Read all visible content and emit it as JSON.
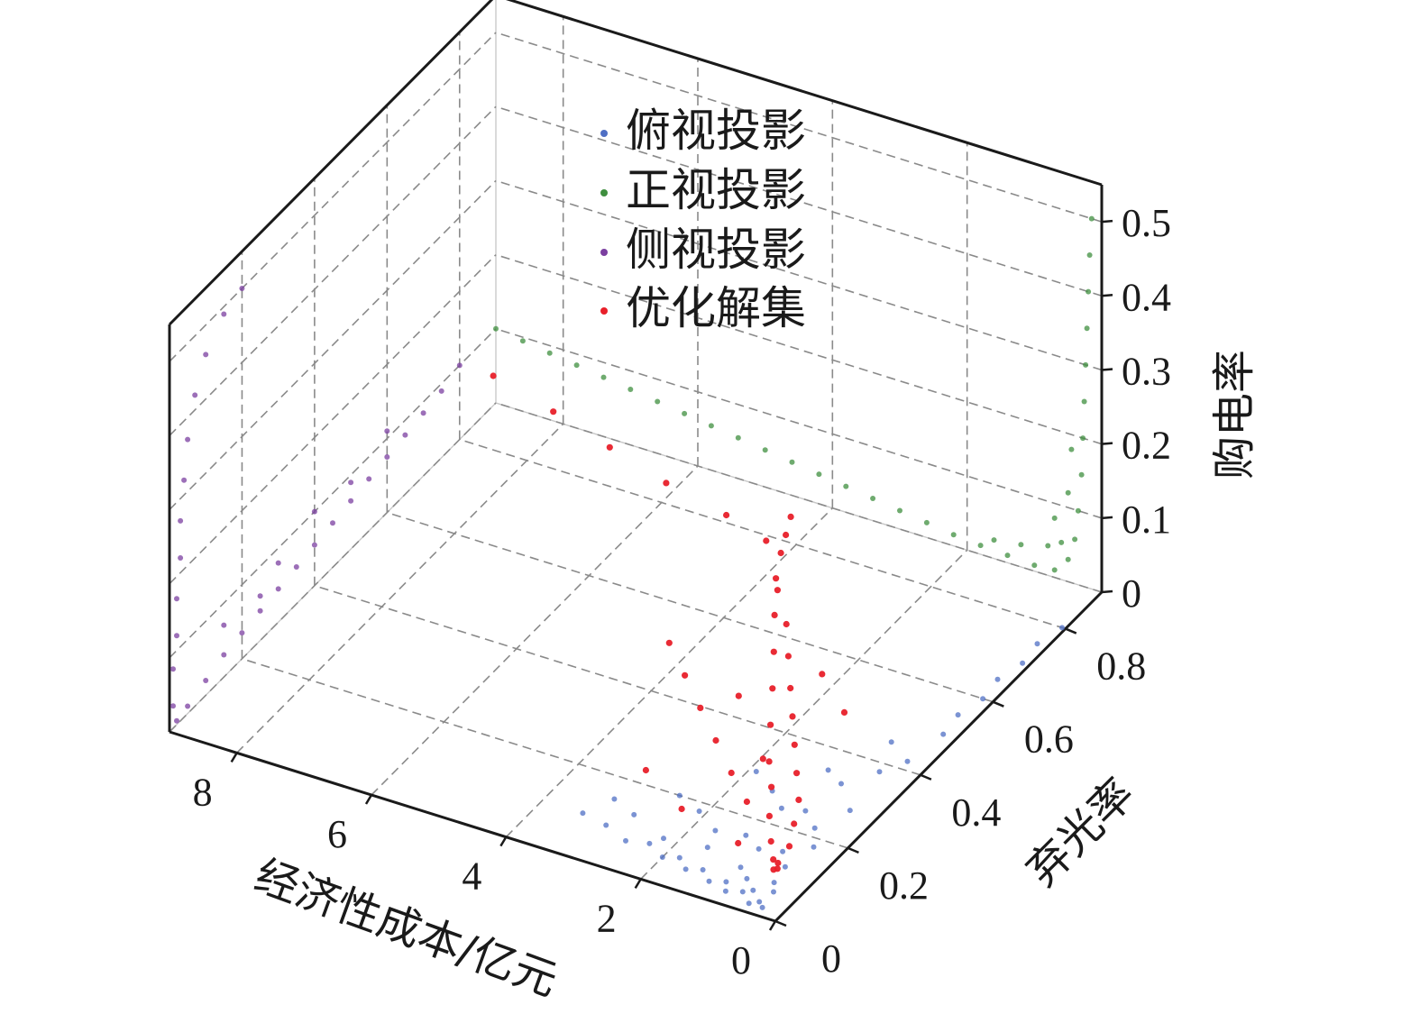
{
  "chart_data": {
    "type": "scatter",
    "projection": "3d",
    "axes": {
      "x": {
        "label": "经济性成本/亿元",
        "ticks": [
          "0",
          "2",
          "4",
          "6",
          "8"
        ],
        "range": [
          0,
          9
        ]
      },
      "y": {
        "label": "弃光率",
        "ticks": [
          "0",
          "0.2",
          "0.4",
          "0.6",
          "0.8"
        ],
        "range": [
          0,
          0.9
        ]
      },
      "z": {
        "label": "购电率",
        "ticks": [
          "0",
          "0.1",
          "0.2",
          "0.3",
          "0.4",
          "0.5"
        ],
        "range": [
          0,
          0.55
        ]
      }
    },
    "grid": true,
    "legend": {
      "placement": "top-center",
      "entries": [
        {
          "label": "俯视投影",
          "color": "#4f6fc4"
        },
        {
          "label": "正视投影",
          "color": "#3f8f3f"
        },
        {
          "label": "侧视投影",
          "color": "#7b3fa0"
        },
        {
          "label": "优化解集",
          "color": "#e8202a"
        }
      ]
    },
    "series": [
      {
        "name": "俯视投影",
        "color": "#4f6fc4",
        "points_xyz": [
          [
            0.3,
            0.02,
            0
          ],
          [
            0.4,
            0.03,
            0
          ],
          [
            0.5,
            0.02,
            0
          ],
          [
            0.6,
            0.05,
            0
          ],
          [
            0.7,
            0.04,
            0
          ],
          [
            0.8,
            0.07,
            0
          ],
          [
            0.35,
            0.06,
            0
          ],
          [
            0.45,
            0.08,
            0
          ],
          [
            0.9,
            0.03,
            0
          ],
          [
            1.0,
            0.05,
            0
          ],
          [
            1.2,
            0.04,
            0
          ],
          [
            1.4,
            0.06,
            0
          ],
          [
            1.6,
            0.05,
            0
          ],
          [
            1.8,
            0.07,
            0
          ],
          [
            2.0,
            0.06,
            0
          ],
          [
            2.3,
            0.08,
            0
          ],
          [
            2.6,
            0.07,
            0
          ],
          [
            3.0,
            0.09,
            0
          ],
          [
            3.4,
            0.1,
            0
          ],
          [
            0.5,
            0.12,
            0
          ],
          [
            0.7,
            0.15,
            0
          ],
          [
            1.0,
            0.14,
            0
          ],
          [
            1.3,
            0.16,
            0
          ],
          [
            1.7,
            0.15,
            0
          ],
          [
            2.1,
            0.18,
            0
          ],
          [
            2.5,
            0.2,
            0
          ],
          [
            0.6,
            0.22,
            0
          ],
          [
            0.9,
            0.25,
            0
          ],
          [
            1.2,
            0.24,
            0
          ],
          [
            1.5,
            0.27,
            0
          ],
          [
            1.9,
            0.3,
            0
          ],
          [
            0.4,
            0.28,
            0
          ],
          [
            0.8,
            0.33,
            0
          ],
          [
            1.1,
            0.35,
            0
          ],
          [
            0.5,
            0.38,
            0
          ],
          [
            0.3,
            0.42,
            0
          ],
          [
            0.7,
            0.45,
            0
          ],
          [
            0.2,
            0.5,
            0
          ],
          [
            0.25,
            0.55,
            0
          ],
          [
            0.15,
            0.6,
            0
          ],
          [
            0.2,
            0.65,
            0
          ],
          [
            0.1,
            0.7,
            0
          ],
          [
            0.15,
            0.75,
            0
          ],
          [
            0.05,
            0.8,
            0
          ],
          [
            0.4,
            0.18,
            0
          ],
          [
            1.6,
            0.11,
            0
          ],
          [
            2.8,
            0.13,
            0
          ],
          [
            3.2,
            0.15,
            0
          ],
          [
            1.0,
            0.09,
            0
          ],
          [
            2.2,
            0.1,
            0
          ]
        ]
      },
      {
        "name": "正视投影",
        "color": "#3f8f3f",
        "points_xyz": [
          [
            9.0,
            0.9,
            0.1
          ],
          [
            8.6,
            0.9,
            0.095
          ],
          [
            8.2,
            0.9,
            0.09
          ],
          [
            7.8,
            0.9,
            0.085
          ],
          [
            7.4,
            0.9,
            0.08
          ],
          [
            7.0,
            0.9,
            0.075
          ],
          [
            6.6,
            0.9,
            0.07
          ],
          [
            6.2,
            0.9,
            0.065
          ],
          [
            5.8,
            0.9,
            0.06
          ],
          [
            5.4,
            0.9,
            0.055
          ],
          [
            5.0,
            0.9,
            0.05
          ],
          [
            4.6,
            0.9,
            0.045
          ],
          [
            4.2,
            0.9,
            0.04
          ],
          [
            3.8,
            0.9,
            0.035
          ],
          [
            3.4,
            0.9,
            0.03
          ],
          [
            3.0,
            0.9,
            0.025
          ],
          [
            2.6,
            0.9,
            0.02
          ],
          [
            2.2,
            0.9,
            0.015
          ],
          [
            1.8,
            0.9,
            0.012
          ],
          [
            1.4,
            0.9,
            0.01
          ],
          [
            1.0,
            0.9,
            0.008
          ],
          [
            0.7,
            0.9,
            0.01
          ],
          [
            0.5,
            0.9,
            0.03
          ],
          [
            0.4,
            0.9,
            0.06
          ],
          [
            0.35,
            0.9,
            0.1
          ],
          [
            0.3,
            0.9,
            0.15
          ],
          [
            0.28,
            0.9,
            0.2
          ],
          [
            0.26,
            0.9,
            0.25
          ],
          [
            0.24,
            0.9,
            0.3
          ],
          [
            0.22,
            0.9,
            0.35
          ],
          [
            0.2,
            0.9,
            0.4
          ],
          [
            0.18,
            0.9,
            0.45
          ],
          [
            0.15,
            0.9,
            0.5
          ],
          [
            0.6,
            0.9,
            0.05
          ],
          [
            0.8,
            0.9,
            0.04
          ],
          [
            1.2,
            0.9,
            0.03
          ],
          [
            1.6,
            0.9,
            0.025
          ],
          [
            0.5,
            0.9,
            0.12
          ],
          [
            0.45,
            0.9,
            0.18
          ],
          [
            0.7,
            0.9,
            0.08
          ]
        ]
      },
      {
        "name": "侧视投影",
        "color": "#7b3fa0",
        "points_xyz": [
          [
            9.0,
            0.8,
            0.1
          ],
          [
            9.0,
            0.75,
            0.09
          ],
          [
            9.0,
            0.7,
            0.085
          ],
          [
            9.0,
            0.65,
            0.08
          ],
          [
            9.0,
            0.6,
            0.075
          ],
          [
            9.0,
            0.55,
            0.07
          ],
          [
            9.0,
            0.5,
            0.065
          ],
          [
            9.0,
            0.45,
            0.06
          ],
          [
            9.0,
            0.4,
            0.055
          ],
          [
            9.0,
            0.35,
            0.05
          ],
          [
            9.0,
            0.3,
            0.045
          ],
          [
            9.0,
            0.25,
            0.04
          ],
          [
            9.0,
            0.2,
            0.035
          ],
          [
            9.0,
            0.15,
            0.03
          ],
          [
            9.0,
            0.1,
            0.02
          ],
          [
            9.0,
            0.05,
            0.01
          ],
          [
            9.0,
            0.02,
            0.005
          ],
          [
            9.0,
            0.01,
            0.03
          ],
          [
            9.0,
            0.01,
            0.08
          ],
          [
            9.0,
            0.02,
            0.12
          ],
          [
            9.0,
            0.02,
            0.17
          ],
          [
            9.0,
            0.03,
            0.22
          ],
          [
            9.0,
            0.03,
            0.27
          ],
          [
            9.0,
            0.04,
            0.32
          ],
          [
            9.0,
            0.05,
            0.37
          ],
          [
            9.0,
            0.07,
            0.42
          ],
          [
            9.0,
            0.1,
            0.46
          ],
          [
            9.0,
            0.15,
            0.49
          ],
          [
            9.0,
            0.2,
            0.5
          ],
          [
            9.0,
            0.3,
            0.08
          ],
          [
            9.0,
            0.4,
            0.1
          ],
          [
            9.0,
            0.5,
            0.09
          ],
          [
            9.0,
            0.6,
            0.11
          ],
          [
            9.0,
            0.15,
            0.07
          ],
          [
            9.0,
            0.25,
            0.06
          ]
        ]
      },
      {
        "name": "优化解集",
        "color": "#e8202a",
        "points_xyz": [
          [
            8.5,
            0.8,
            0.1
          ],
          [
            7.5,
            0.78,
            0.09
          ],
          [
            6.5,
            0.75,
            0.085
          ],
          [
            5.5,
            0.72,
            0.08
          ],
          [
            4.5,
            0.7,
            0.075
          ],
          [
            3.8,
            0.68,
            0.07
          ],
          [
            3.2,
            0.6,
            0.06
          ],
          [
            2.8,
            0.55,
            0.05
          ],
          [
            2.5,
            0.5,
            0.04
          ],
          [
            2.2,
            0.45,
            0.03
          ],
          [
            1.9,
            0.4,
            0.025
          ],
          [
            1.6,
            0.35,
            0.02
          ],
          [
            1.3,
            0.3,
            0.015
          ],
          [
            1.0,
            0.25,
            0.012
          ],
          [
            0.8,
            0.2,
            0.01
          ],
          [
            0.6,
            0.15,
            0.01
          ],
          [
            0.5,
            0.1,
            0.015
          ],
          [
            0.4,
            0.08,
            0.02
          ],
          [
            0.35,
            0.06,
            0.03
          ],
          [
            0.3,
            0.05,
            0.05
          ],
          [
            0.28,
            0.04,
            0.08
          ],
          [
            0.25,
            0.03,
            0.12
          ],
          [
            0.22,
            0.03,
            0.16
          ],
          [
            0.2,
            0.02,
            0.2
          ],
          [
            0.18,
            0.02,
            0.25
          ],
          [
            0.15,
            0.02,
            0.3
          ],
          [
            0.13,
            0.02,
            0.35
          ],
          [
            0.12,
            0.02,
            0.4
          ],
          [
            0.1,
            0.02,
            0.45
          ],
          [
            0.08,
            0.03,
            0.48
          ],
          [
            0.06,
            0.04,
            0.5
          ],
          [
            0.04,
            0.05,
            0.52
          ],
          [
            1.5,
            0.2,
            0.02
          ],
          [
            2.0,
            0.25,
            0.02
          ],
          [
            2.5,
            0.3,
            0.025
          ],
          [
            3.0,
            0.35,
            0.03
          ],
          [
            2.2,
            0.15,
            0.015
          ],
          [
            3.0,
            0.2,
            0.02
          ],
          [
            1.2,
            0.12,
            0.012
          ],
          [
            1.8,
            0.3,
            0.02
          ],
          [
            3.5,
            0.4,
            0.035
          ],
          [
            4.0,
            0.45,
            0.04
          ],
          [
            2.7,
            0.4,
            0.03
          ],
          [
            1.4,
            0.45,
            0.02
          ],
          [
            2.0,
            0.5,
            0.03
          ]
        ]
      }
    ]
  }
}
